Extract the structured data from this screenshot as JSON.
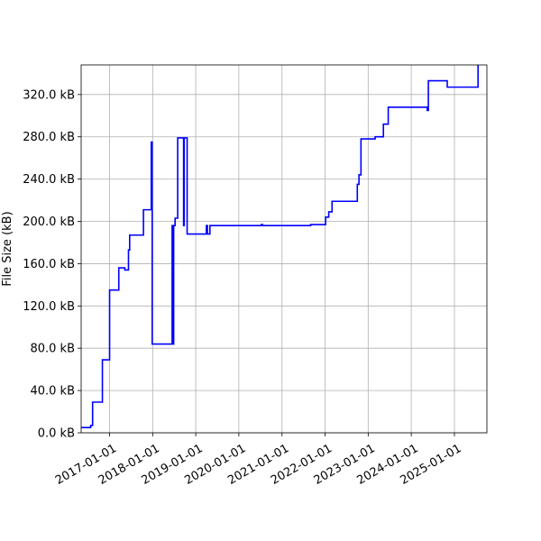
{
  "chart_data": {
    "type": "line",
    "title": "",
    "xlabel": "",
    "ylabel": "File Size (kB)",
    "grid": true,
    "legend": "none",
    "series_color": "#0000ff",
    "xlim": [
      "2016-05-05",
      "2025-10-03"
    ],
    "ylim": [
      0,
      348
    ],
    "x_ticks": [
      "2017-01-01",
      "2018-01-01",
      "2019-01-01",
      "2020-01-01",
      "2021-01-01",
      "2022-01-01",
      "2023-01-01",
      "2024-01-01",
      "2025-01-01"
    ],
    "y_ticks": [
      0,
      40,
      80,
      120,
      160,
      200,
      240,
      280,
      320
    ],
    "y_tick_labels": [
      "0.0 kB",
      "40.0 kB",
      "80.0 kB",
      "120.0 kB",
      "160.0 kB",
      "200.0 kB",
      "240.0 kB",
      "280.0 kB",
      "320.0 kB"
    ],
    "series": [
      {
        "name": "",
        "points": [
          [
            "2016-05-05",
            5
          ],
          [
            "2016-07-25",
            5
          ],
          [
            "2016-07-25",
            7
          ],
          [
            "2016-08-10",
            7
          ],
          [
            "2016-08-10",
            29
          ],
          [
            "2016-11-01",
            29
          ],
          [
            "2016-11-01",
            69
          ],
          [
            "2017-01-01",
            69
          ],
          [
            "2017-01-01",
            135
          ],
          [
            "2017-03-20",
            135
          ],
          [
            "2017-03-20",
            156
          ],
          [
            "2017-05-10",
            156
          ],
          [
            "2017-05-10",
            154
          ],
          [
            "2017-06-10",
            154
          ],
          [
            "2017-06-10",
            173
          ],
          [
            "2017-06-20",
            173
          ],
          [
            "2017-06-20",
            187
          ],
          [
            "2017-10-15",
            187
          ],
          [
            "2017-10-15",
            211
          ],
          [
            "2017-12-20",
            211
          ],
          [
            "2017-12-20",
            275
          ],
          [
            "2017-12-28",
            275
          ],
          [
            "2017-12-28",
            84
          ],
          [
            "2018-06-15",
            84
          ],
          [
            "2018-06-15",
            196
          ],
          [
            "2018-06-20",
            196
          ],
          [
            "2018-06-20",
            84
          ],
          [
            "2018-06-28",
            84
          ],
          [
            "2018-06-28",
            196
          ],
          [
            "2018-07-10",
            196
          ],
          [
            "2018-07-10",
            203
          ],
          [
            "2018-08-01",
            203
          ],
          [
            "2018-08-01",
            279
          ],
          [
            "2018-09-20",
            279
          ],
          [
            "2018-09-20",
            196
          ],
          [
            "2018-09-25",
            196
          ],
          [
            "2018-09-25",
            279
          ],
          [
            "2018-10-20",
            279
          ],
          [
            "2018-10-20",
            188
          ],
          [
            "2019-04-01",
            188
          ],
          [
            "2019-04-01",
            196
          ],
          [
            "2019-04-10",
            196
          ],
          [
            "2019-04-10",
            188
          ],
          [
            "2019-05-01",
            188
          ],
          [
            "2019-05-01",
            196
          ],
          [
            "2020-07-10",
            196
          ],
          [
            "2020-07-10",
            197
          ],
          [
            "2020-07-20",
            197
          ],
          [
            "2020-07-20",
            196
          ],
          [
            "2021-09-01",
            196
          ],
          [
            "2021-09-01",
            197
          ],
          [
            "2022-01-05",
            197
          ],
          [
            "2022-01-05",
            204
          ],
          [
            "2022-02-01",
            204
          ],
          [
            "2022-02-01",
            209
          ],
          [
            "2022-03-01",
            209
          ],
          [
            "2022-03-01",
            219
          ],
          [
            "2022-10-01",
            219
          ],
          [
            "2022-10-01",
            235
          ],
          [
            "2022-10-15",
            235
          ],
          [
            "2022-10-15",
            244
          ],
          [
            "2022-11-01",
            244
          ],
          [
            "2022-11-01",
            278
          ],
          [
            "2023-03-01",
            278
          ],
          [
            "2023-03-01",
            280
          ],
          [
            "2023-05-10",
            280
          ],
          [
            "2023-05-10",
            292
          ],
          [
            "2023-06-20",
            292
          ],
          [
            "2023-06-20",
            308
          ],
          [
            "2024-05-15",
            308
          ],
          [
            "2024-05-15",
            305
          ],
          [
            "2024-05-25",
            305
          ],
          [
            "2024-05-25",
            333
          ],
          [
            "2024-11-01",
            333
          ],
          [
            "2024-11-01",
            327
          ],
          [
            "2025-07-20",
            327
          ],
          [
            "2025-07-20",
            348
          ]
        ]
      }
    ]
  }
}
